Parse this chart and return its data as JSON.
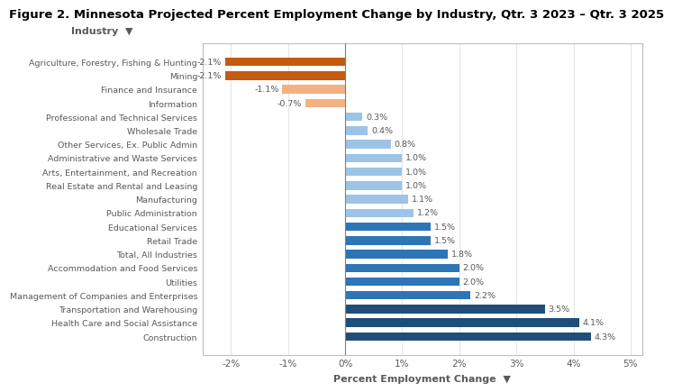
{
  "title": "Figure 2. Minnesota Projected Percent Employment Change by Industry, Qtr. 3 2023 – Qtr. 3 2025",
  "categories": [
    "Agriculture, Forestry, Fishing & Hunting",
    "Mining",
    "Finance and Insurance",
    "Information",
    "Professional and Technical Services",
    "Wholesale Trade",
    "Other Services, Ex. Public Admin",
    "Administrative and Waste Services",
    "Arts, Entertainment, and Recreation",
    "Real Estate and Rental and Leasing",
    "Manufacturing",
    "Public Administration",
    "Educational Services",
    "Retail Trade",
    "Total, All Industries",
    "Accommodation and Food Services",
    "Utilities",
    "Management of Companies and Enterprises",
    "Transportation and Warehousing",
    "Health Care and Social Assistance",
    "Construction"
  ],
  "values": [
    -2.1,
    -2.1,
    -1.1,
    -0.7,
    0.3,
    0.4,
    0.8,
    1.0,
    1.0,
    1.0,
    1.1,
    1.2,
    1.5,
    1.5,
    1.8,
    2.0,
    2.0,
    2.2,
    3.5,
    4.1,
    4.3
  ],
  "color_assignments": [
    "dark_orange",
    "dark_orange",
    "light_orange",
    "light_orange",
    "light_blue",
    "light_blue",
    "light_blue",
    "light_blue",
    "light_blue",
    "light_blue",
    "light_blue",
    "light_blue",
    "medium_blue",
    "medium_blue",
    "medium_blue",
    "medium_blue",
    "medium_blue",
    "medium_blue",
    "dark_blue",
    "dark_blue",
    "dark_blue"
  ],
  "colors": {
    "dark_blue": "#1F4E79",
    "medium_blue": "#2E75B6",
    "light_blue": "#9DC3E6",
    "dark_orange": "#C55A11",
    "light_orange": "#F4B183"
  },
  "xlabel": "Percent Employment Change",
  "ylabel_text": "Industry",
  "xlim": [
    -2.5,
    5.2
  ],
  "xticks": [
    -2,
    -1,
    0,
    1,
    2,
    3,
    4,
    5
  ],
  "xtick_labels": [
    "-2%",
    "-1%",
    "0%",
    "1%",
    "2%",
    "3%",
    "4%",
    "5%"
  ],
  "background_color": "#ffffff",
  "ytick_fontsize": 6.8,
  "xtick_fontsize": 7.5,
  "title_fontsize": 9.5,
  "axis_label_fontsize": 8.0,
  "bar_height": 0.62,
  "value_label_fontsize": 6.8,
  "text_color": "#595959",
  "label_color": "#595959",
  "grid_color": "#d9d9d9",
  "border_color": "#bfbfbf"
}
